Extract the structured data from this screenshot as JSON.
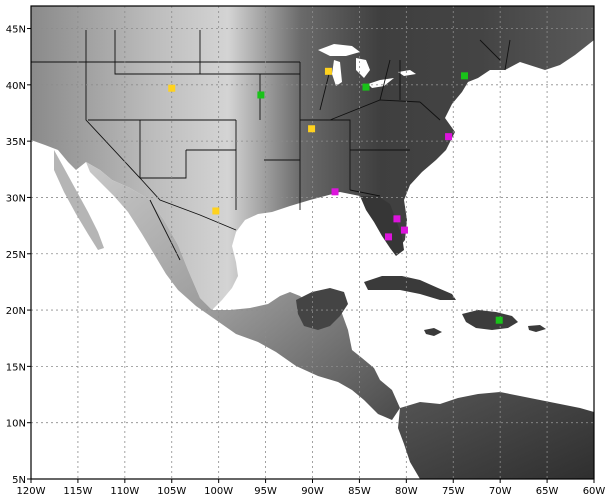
{
  "map": {
    "lon_range": [
      -120,
      -60
    ],
    "lat_range": [
      5,
      47
    ],
    "grid": true,
    "x_ticks": [
      {
        "lon": -120,
        "label": "120W"
      },
      {
        "lon": -115,
        "label": "115W"
      },
      {
        "lon": -110,
        "label": "110W"
      },
      {
        "lon": -105,
        "label": "105W"
      },
      {
        "lon": -100,
        "label": "100W"
      },
      {
        "lon": -95,
        "label": "95W"
      },
      {
        "lon": -90,
        "label": "90W"
      },
      {
        "lon": -85,
        "label": "85W"
      },
      {
        "lon": -80,
        "label": "80W"
      },
      {
        "lon": -75,
        "label": "75W"
      },
      {
        "lon": -70,
        "label": "70W"
      },
      {
        "lon": -65,
        "label": "65W"
      },
      {
        "lon": -60,
        "label": "60W"
      }
    ],
    "y_ticks": [
      {
        "lat": 45,
        "label": "45N"
      },
      {
        "lat": 40,
        "label": "40N"
      },
      {
        "lat": 35,
        "label": "35N"
      },
      {
        "lat": 30,
        "label": "30N"
      },
      {
        "lat": 25,
        "label": "25N"
      },
      {
        "lat": 20,
        "label": "20N"
      },
      {
        "lat": 15,
        "label": "15N"
      },
      {
        "lat": 10,
        "label": "10N"
      },
      {
        "lat": 5,
        "label": "5N"
      }
    ],
    "colors": {
      "yellow": "#ffd21e",
      "green": "#19c319",
      "magenta": "#dc14dc",
      "ocean": "#ffffff",
      "land_dark": "#3a3a3a",
      "land_light": "#d8d8d8",
      "grid": "#8c8c8c"
    },
    "markers": [
      {
        "color": "yellow",
        "lon": -105.0,
        "lat": 39.7
      },
      {
        "color": "yellow",
        "lon": -88.3,
        "lat": 41.2
      },
      {
        "color": "yellow",
        "lon": -90.1,
        "lat": 36.1
      },
      {
        "color": "yellow",
        "lon": -100.3,
        "lat": 28.8
      },
      {
        "color": "green",
        "lon": -95.5,
        "lat": 39.1
      },
      {
        "color": "green",
        "lon": -84.3,
        "lat": 39.8
      },
      {
        "color": "green",
        "lon": -73.8,
        "lat": 40.8
      },
      {
        "color": "green",
        "lon": -70.1,
        "lat": 19.1
      },
      {
        "color": "magenta",
        "lon": -75.5,
        "lat": 35.4
      },
      {
        "color": "magenta",
        "lon": -87.6,
        "lat": 30.5
      },
      {
        "color": "magenta",
        "lon": -81.0,
        "lat": 28.1
      },
      {
        "color": "magenta",
        "lon": -80.2,
        "lat": 27.1
      },
      {
        "color": "magenta",
        "lon": -81.9,
        "lat": 26.5
      }
    ]
  }
}
